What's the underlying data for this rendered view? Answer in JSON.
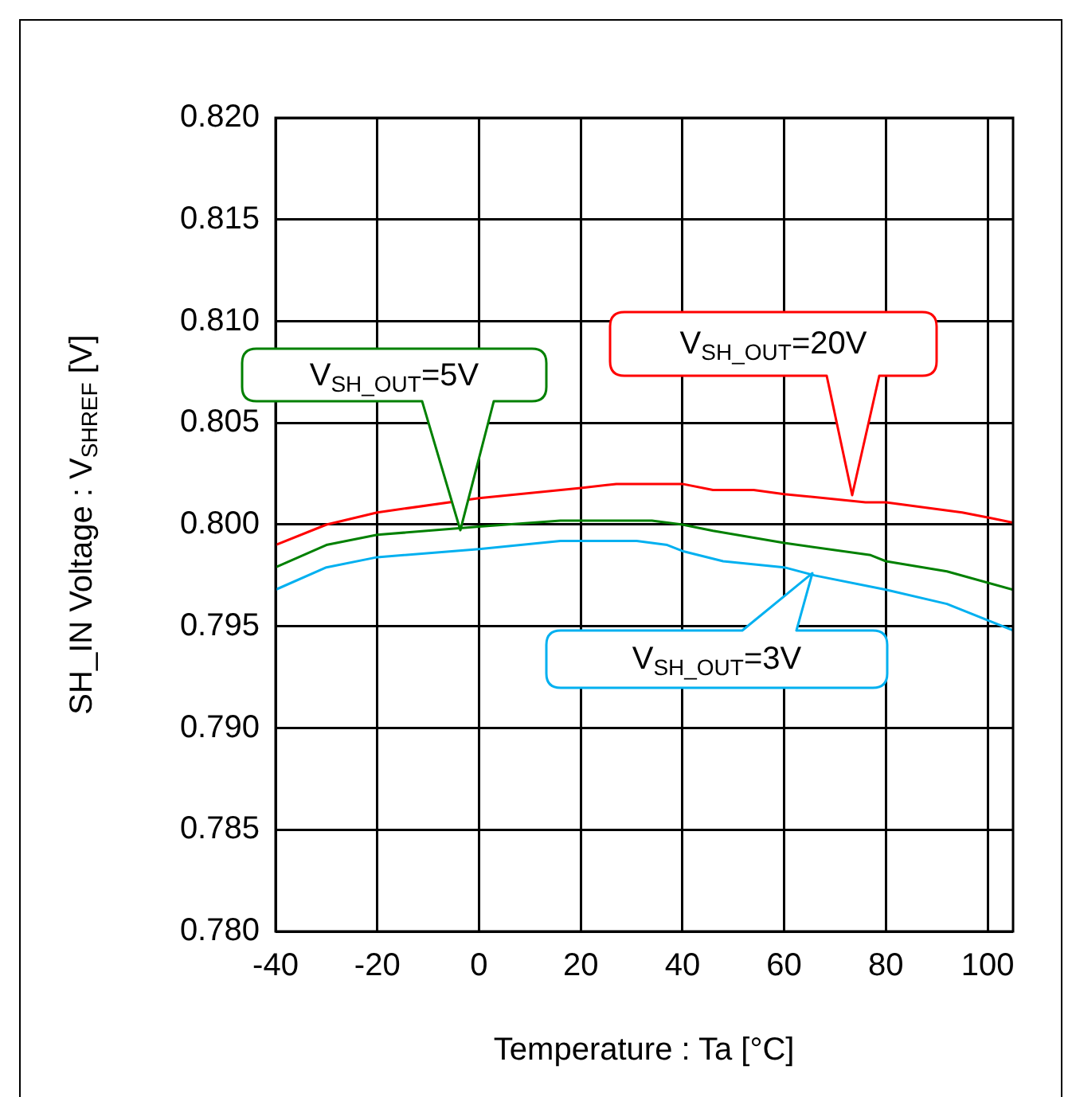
{
  "chart_data": {
    "type": "line",
    "xlabel": "Temperature : Ta [°C]",
    "ylabel": "SH_IN Voltage : V$_{SHREF}$ [V]",
    "xlim": [
      -40,
      105
    ],
    "xticks": [
      -40,
      -20,
      0,
      20,
      40,
      60,
      80,
      100
    ],
    "ylim": [
      0.78,
      0.82
    ],
    "yticks": [
      {
        "value": 0.78,
        "label": "0.780"
      },
      0.785,
      {
        "value": 0.79,
        "label": "0.790"
      },
      0.795,
      {
        "value": 0.8,
        "label": "0.800"
      },
      0.805,
      {
        "value": 0.81,
        "label": "0.810"
      },
      0.815,
      {
        "value": 0.82,
        "label": "0.820"
      }
    ],
    "grid": true,
    "legend": false,
    "marker": "none",
    "line_style": "solid",
    "series": [
      {
        "color": "#ff0000",
        "x": [
          -40,
          -30,
          -20,
          0,
          20,
          27,
          40,
          46,
          54,
          60,
          76,
          80,
          95,
          101,
          105
        ],
        "values": [
          0.799,
          0.8,
          0.8006,
          0.8013,
          0.8018,
          0.802,
          0.802,
          0.8017,
          0.8017,
          0.8015,
          0.8011,
          0.8011,
          0.8006,
          0.8003,
          0.8001
        ]
      },
      {
        "color": "#008000",
        "x": [
          -40,
          -30,
          -20,
          0,
          16,
          34,
          40,
          46,
          60,
          77,
          80,
          92,
          105
        ],
        "values": [
          0.7979,
          0.799,
          0.7995,
          0.7999,
          0.8002,
          0.8002,
          0.8,
          0.7997,
          0.7991,
          0.7985,
          0.7982,
          0.7977,
          0.7968
        ]
      },
      {
        "color": "#00b0f0",
        "x": [
          -40,
          -30,
          -20,
          0,
          16,
          31,
          37,
          40,
          48,
          60,
          66,
          80,
          92,
          105
        ],
        "values": [
          0.7968,
          0.7979,
          0.7984,
          0.7988,
          0.7992,
          0.7992,
          0.799,
          0.7987,
          0.7982,
          0.7979,
          0.7975,
          0.7968,
          0.7961,
          0.7948
        ]
      }
    ],
    "annotations": [
      "V$_{SH_OUT}$=20V",
      "V$_{SH_OUT}$=5V",
      "V$_{SH_OUT}$=3V"
    ]
  }
}
